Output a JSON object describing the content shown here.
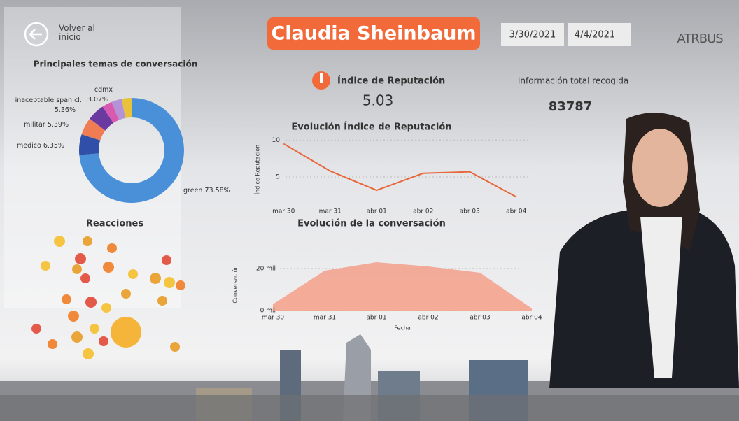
{
  "header": {
    "back": "Volver al inicio",
    "title": "Claudia Sheinbaum",
    "date_from": "3/30/2021",
    "date_to": "4/4/2021",
    "logo": "ATRBUS"
  },
  "kpis": [
    {
      "label": "Índice de Reputación",
      "value": 5.03
    },
    {
      "label": "Información total recogida",
      "value": 83787
    }
  ],
  "reactions_title": "Reacciones",
  "chart_data": [
    {
      "type": "donut",
      "title": "Principales temas de conversación",
      "categories": [
        "green",
        "medico",
        "militar",
        "inaceptable span cl...",
        "cdmx",
        null,
        null
      ],
      "values": [
        73.58,
        6.35,
        5.39,
        5.36,
        3.07,
        3.25,
        3.0
      ],
      "value_labels": [
        "73.58%",
        "6.35%",
        "5.39%",
        "5.36%",
        "3.07%",
        null,
        null
      ],
      "colors": [
        "#4a90d9",
        "#2f4fa8",
        "#f07c54",
        "#6b3aa0",
        "#d85ab0",
        "#b592d8",
        "#e8c23a"
      ]
    },
    {
      "type": "line",
      "title": "Evolución Índice de Reputación",
      "ylabel": "Índice Reputación",
      "categories": [
        "mar 30",
        "mar 31",
        "abr 01",
        "abr 02",
        "abr 03",
        "abr 04"
      ],
      "values": [
        9.5,
        5.8,
        3.2,
        5.5,
        5.7,
        2.3
      ],
      "color": "#e8673a",
      "ylim": [
        1.5,
        10.5
      ],
      "yticks": [
        5,
        10
      ],
      "grid": true
    },
    {
      "type": "area",
      "title": "Evolución de la conversación",
      "ylabel": "Conversación",
      "xlabel": "Fecha",
      "categories": [
        "mar 30",
        "mar 31",
        "abr 01",
        "abr 02",
        "abr 03",
        "abr 04"
      ],
      "values": [
        3000,
        19000,
        23000,
        21000,
        18000,
        1000
      ],
      "color": "#f4a08a",
      "ylim": [
        0,
        25000
      ],
      "yticks": [
        {
          "value": 0,
          "label": "0 mil"
        },
        {
          "value": 20000,
          "label": "20 mil"
        }
      ],
      "grid": true
    }
  ]
}
